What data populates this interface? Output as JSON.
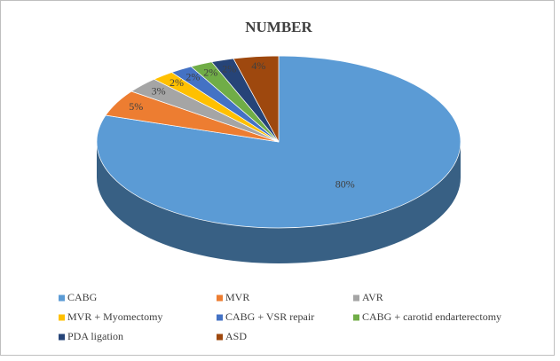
{
  "chart_data": {
    "type": "pie",
    "title": "NUMBER",
    "categories": [
      "CABG",
      "MVR",
      "AVR",
      "MVR + Myomectomy",
      "CABG + VSR repair",
      "CABG + carotid endarterectomy",
      "PDA ligation",
      "ASD"
    ],
    "values": [
      80,
      5,
      3,
      2,
      2,
      2,
      2,
      4
    ],
    "value_labels": [
      "80%",
      "5%",
      "3%",
      "2%",
      "2%",
      "2%",
      "2%",
      "4%"
    ],
    "colors": [
      "#5b9bd5",
      "#ed7d31",
      "#a5a5a5",
      "#ffc000",
      "#4472c4",
      "#70ad47",
      "#264478",
      "#9e480e"
    ],
    "legend": "bottom"
  }
}
